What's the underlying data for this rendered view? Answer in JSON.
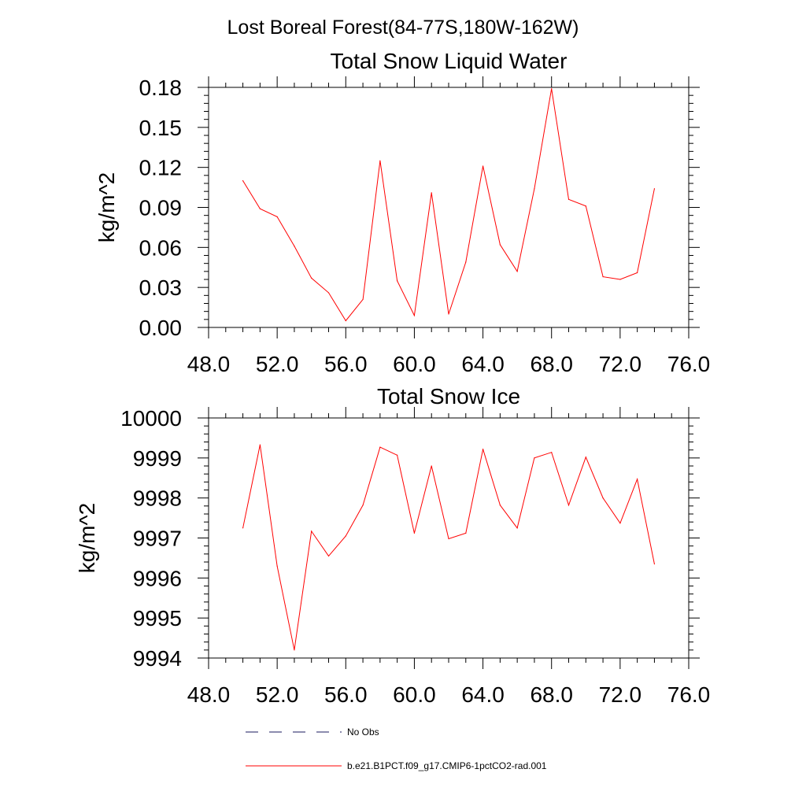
{
  "figure": {
    "suptitle": "Lost Boreal Forest(84-77S,180W-162W)"
  },
  "legend": {
    "items": [
      {
        "label": "No Obs",
        "color": "#1a1a5e",
        "style": "dashed"
      },
      {
        "label": "b.e21.B1PCT.f09_g17.CMIP6-1pctCO2-rad.001",
        "color": "#ff0000",
        "style": "solid"
      }
    ]
  },
  "chart_data": [
    {
      "type": "line",
      "title": "Total Snow Liquid Water",
      "xlabel": "",
      "ylabel": "kg/m^2",
      "xlim": [
        48,
        76
      ],
      "ylim": [
        0,
        0.18
      ],
      "xticks": [
        "48.0",
        "52.0",
        "56.0",
        "60.0",
        "64.0",
        "68.0",
        "72.0",
        "76.0"
      ],
      "yticks": [
        "0.00",
        "0.03",
        "0.06",
        "0.09",
        "0.12",
        "0.15",
        "0.18"
      ],
      "grid": false,
      "series": [
        {
          "name": "b.e21.B1PCT.f09_g17.CMIP6-1pctCO2-rad.001",
          "color": "#ff0000",
          "x": [
            50,
            51,
            52,
            53,
            54,
            55,
            56,
            57,
            58,
            59,
            60,
            61,
            62,
            63,
            64,
            65,
            66,
            67,
            68,
            69,
            70,
            71,
            72,
            73,
            74
          ],
          "y": [
            0.11,
            0.089,
            0.083,
            0.061,
            0.037,
            0.026,
            0.005,
            0.021,
            0.125,
            0.035,
            0.009,
            0.101,
            0.01,
            0.049,
            0.121,
            0.062,
            0.042,
            0.104,
            0.179,
            0.096,
            0.091,
            0.038,
            0.036,
            0.041,
            0.104
          ]
        }
      ]
    },
    {
      "type": "line",
      "title": "Total Snow Ice",
      "xlabel": "",
      "ylabel": "kg/m^2",
      "xlim": [
        48,
        76
      ],
      "ylim": [
        9994,
        10000
      ],
      "xticks": [
        "48.0",
        "52.0",
        "56.0",
        "60.0",
        "64.0",
        "68.0",
        "72.0",
        "76.0"
      ],
      "yticks": [
        "9994",
        "9995",
        "9996",
        "9997",
        "9998",
        "9999",
        "10000"
      ],
      "grid": false,
      "series": [
        {
          "name": "b.e21.B1PCT.f09_g17.CMIP6-1pctCO2-rad.001",
          "color": "#ff0000",
          "x": [
            50,
            51,
            52,
            53,
            54,
            55,
            56,
            57,
            58,
            59,
            60,
            61,
            62,
            63,
            64,
            65,
            66,
            67,
            68,
            69,
            70,
            71,
            72,
            73,
            74
          ],
          "y": [
            9997.25,
            9999.33,
            9996.3,
            9994.2,
            9997.17,
            9996.55,
            9997.05,
            9997.82,
            9999.27,
            9999.07,
            9997.12,
            9998.8,
            9996.98,
            9997.12,
            9999.22,
            9997.82,
            9997.25,
            9999.0,
            9999.14,
            9997.82,
            9999.02,
            9998.0,
            9997.37,
            9998.47,
            9996.35
          ]
        }
      ]
    }
  ]
}
